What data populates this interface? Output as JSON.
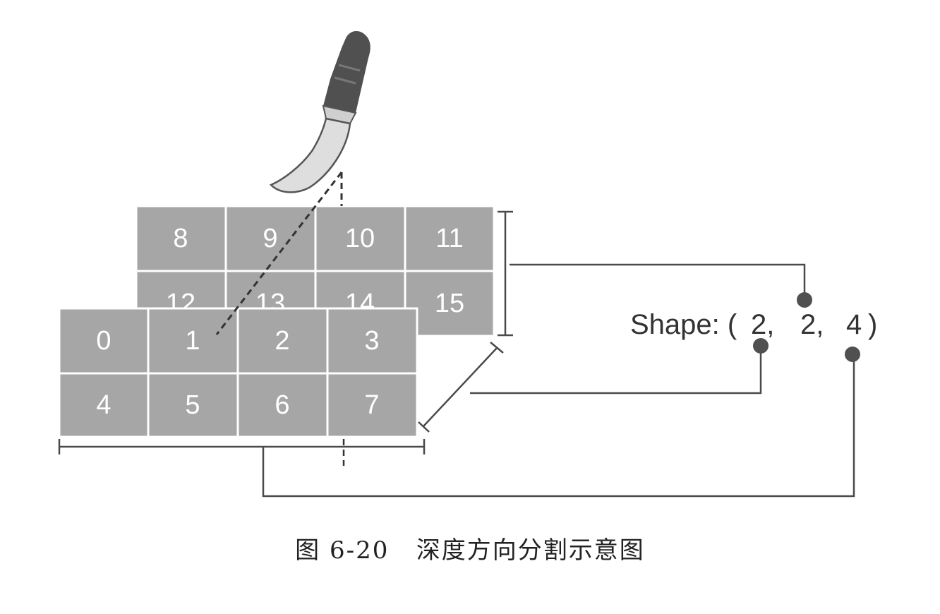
{
  "diagram": {
    "back_layer": {
      "cells": [
        "8",
        "9",
        "10",
        "11",
        "12",
        "13",
        "14",
        "15"
      ]
    },
    "front_layer": {
      "cells": [
        "0",
        "1",
        "2",
        "3",
        "4",
        "5",
        "6",
        "7"
      ]
    },
    "shape": {
      "prefix": "Shape: (",
      "dims": [
        "2,",
        "2,",
        "4"
      ],
      "suffix": ")"
    },
    "icons": [
      "knife-icon"
    ]
  },
  "caption": {
    "figure_number": "图 6-20",
    "text": "深度方向分割示意图"
  }
}
